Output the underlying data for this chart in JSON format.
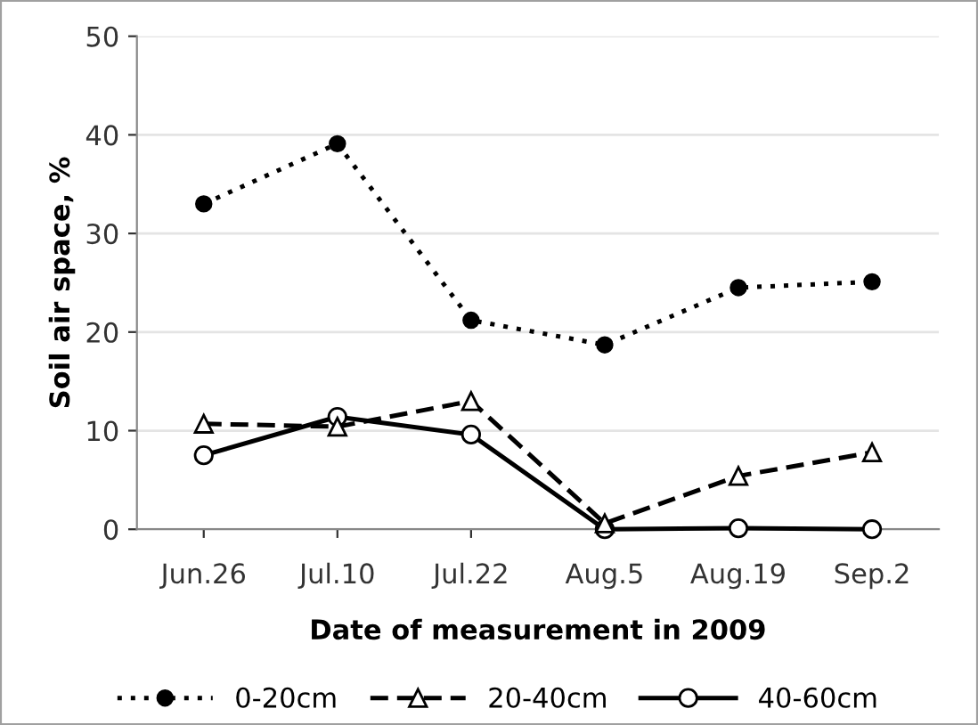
{
  "chart_data": {
    "type": "line",
    "xlabel": "Date of measurement in 2009",
    "ylabel": "Soil air space, %",
    "categories": [
      "Jun.26",
      "Jul.10",
      "Jul.22",
      "Aug.5",
      "Aug.19",
      "Sep.2"
    ],
    "series": [
      {
        "name": "0-20cm",
        "color": "#000000",
        "marker": "circle",
        "line_style": "dotted",
        "values": [
          33,
          39.1,
          21.2,
          18.7,
          24.5,
          25.1
        ]
      },
      {
        "name": "20-40cm",
        "color": "#000000",
        "marker": "triangle",
        "line_style": "dashed",
        "values": [
          10.7,
          10.4,
          13,
          0.6,
          5.4,
          7.8
        ]
      },
      {
        "name": "40-60cm",
        "color": "#000000",
        "marker": "circle",
        "line_style": "solid",
        "values": [
          7.5,
          11.4,
          9.6,
          0,
          0.1,
          0
        ]
      }
    ],
    "ylim": [
      0,
      50
    ],
    "yticks": [
      0,
      10,
      20,
      30,
      40,
      50
    ],
    "grid": "y",
    "legend": "bottom"
  }
}
